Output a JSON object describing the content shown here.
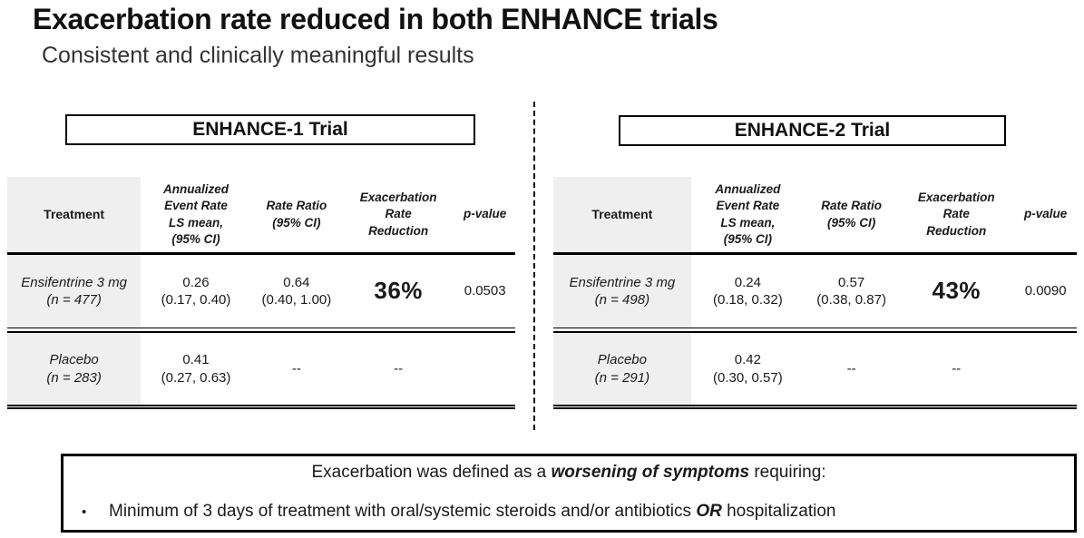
{
  "slide": {
    "title": "Exacerbation rate reduced in both ENHANCE trials",
    "subtitle": "Consistent and clinically meaningful results"
  },
  "columns": {
    "treatment": "Treatment",
    "event_rate": [
      "Annualized",
      "Event Rate",
      "LS mean,",
      "(95% CI)"
    ],
    "rate_ratio": [
      "Rate Ratio",
      "(95% CI)"
    ],
    "reduction": [
      "Exacerbation",
      "Rate",
      "Reduction"
    ],
    "p_value": "p-value"
  },
  "trials": [
    {
      "name": "ENHANCE-1 Trial",
      "rows": [
        {
          "treatment": [
            "Ensifentrine 3 mg",
            "(n = 477)"
          ],
          "event_rate": [
            "0.26",
            "(0.17, 0.40)"
          ],
          "rate_ratio": [
            "0.64",
            "(0.40, 1.00)"
          ],
          "reduction": "36%",
          "p_value": "0.0503"
        },
        {
          "treatment": [
            "Placebo",
            "(n = 283)"
          ],
          "event_rate": [
            "0.41",
            "(0.27, 0.63)"
          ],
          "rate_ratio": "--",
          "reduction": "--",
          "p_value": ""
        }
      ]
    },
    {
      "name": "ENHANCE-2 Trial",
      "rows": [
        {
          "treatment": [
            "Ensifentrine 3 mg",
            "(n = 498)"
          ],
          "event_rate": [
            "0.24",
            "(0.18, 0.32)"
          ],
          "rate_ratio": [
            "0.57",
            "(0.38, 0.87)"
          ],
          "reduction": "43%",
          "p_value": "0.0090"
        },
        {
          "treatment": [
            "Placebo",
            "(n = 291)"
          ],
          "event_rate": [
            "0.42",
            "(0.30, 0.57)"
          ],
          "rate_ratio": "--",
          "reduction": "--",
          "p_value": ""
        }
      ]
    }
  ],
  "definition_box": {
    "heading": {
      "prefix": "Exacerbation was defined as a ",
      "emphasis": "worsening of symptoms",
      "suffix": " requiring:"
    },
    "bullet": {
      "marker": "•",
      "prefix": "Minimum of 3 days of treatment with oral/systemic steroids and/or antibiotics ",
      "emphasis": "OR",
      "suffix": " hospitalization"
    }
  },
  "colors": {
    "treatment_column_fill": "#efefef",
    "border": "#000000",
    "text": "#1a1a1a"
  }
}
